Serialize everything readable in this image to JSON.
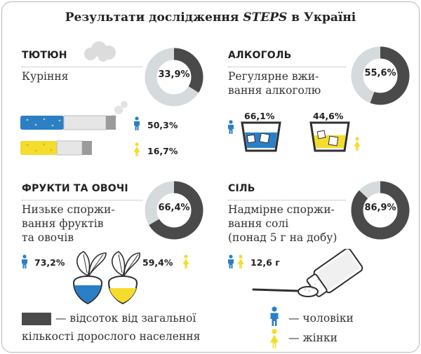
{
  "title": {
    "prefix": "Результати дослідження ",
    "italic": "STEPS",
    "suffix": " в Україні"
  },
  "colors": {
    "dark": "#4a4a4a",
    "light": "#d5dadd",
    "blue": "#2a7fc7",
    "yellow": "#f4dc2c",
    "grey": "#8e8e8e"
  },
  "tobacco": {
    "heading": "ТЮТЮН",
    "description": "Куріння",
    "donut_label": "33,9%",
    "donut_fraction": 0.339,
    "men_pct": "50,3%",
    "women_pct": "16,7%"
  },
  "alcohol": {
    "heading": "АЛКОГОЛЬ",
    "description": "Регулярне вжи-\nвання алкоголю",
    "donut_label": "55,6%",
    "donut_fraction": 0.556,
    "men_pct": "66,1%",
    "women_pct": "44,6%"
  },
  "fruits": {
    "heading": "ФРУКТИ ТА ОВОЧІ",
    "description": "Низьке споржи-\nвання фруктів\nта овочів",
    "donut_label": "66,4%",
    "donut_fraction": 0.664,
    "men_pct": "73,2%",
    "women_pct": "59,4%"
  },
  "salt": {
    "heading": "СІЛЬ",
    "description": "Надмірне споржи-\nвання солі\n(понад 5 г на добу)",
    "donut_label": "86,9%",
    "donut_fraction": 0.869,
    "amount": "12,6 г"
  },
  "legend": {
    "share_text_1": "— відсоток від загальної",
    "share_text_2": "кількості дорослого населення",
    "men": "— чоловіки",
    "women": "— жінки"
  }
}
